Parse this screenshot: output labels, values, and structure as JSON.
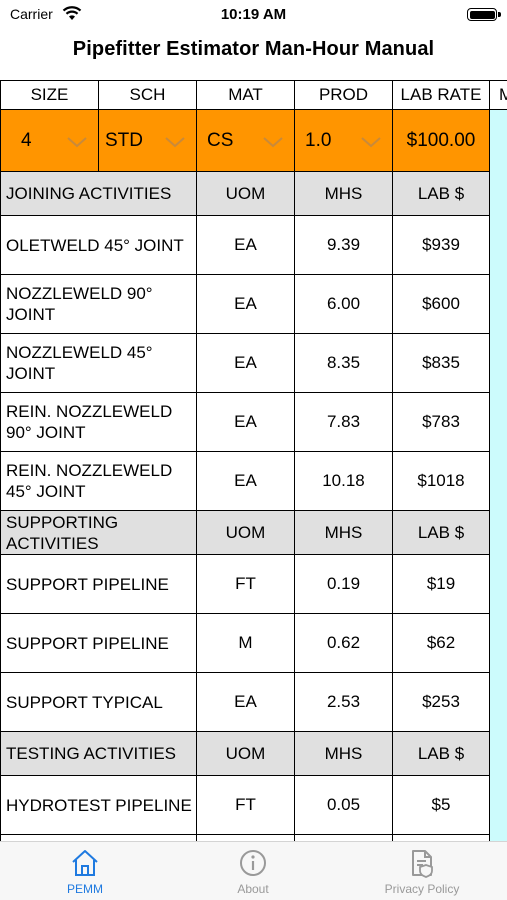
{
  "status_bar": {
    "carrier": "Carrier",
    "time": "10:19 AM"
  },
  "nav": {
    "title": "Pipefitter Estimator Man-Hour Manual"
  },
  "columns": [
    "SIZE",
    "SCH",
    "MAT",
    "PROD",
    "LAB RATE",
    "M"
  ],
  "selectors": {
    "size": "4",
    "sch": "STD",
    "mat": "CS",
    "prod": "1.0",
    "lab_rate": "$100.00"
  },
  "sections": [
    {
      "title": "JOINING ACTIVITIES",
      "headers": {
        "uom": "UOM",
        "mhs": "MHS",
        "lab": "LAB $"
      },
      "rows": [
        {
          "activity": "OLETWELD 45° JOINT",
          "uom": "EA",
          "mhs": "9.39",
          "lab": "$939"
        },
        {
          "activity": "NOZZLEWELD 90° JOINT",
          "uom": "EA",
          "mhs": "6.00",
          "lab": "$600"
        },
        {
          "activity": "NOZZLEWELD 45° JOINT",
          "uom": "EA",
          "mhs": "8.35",
          "lab": "$835"
        },
        {
          "activity": "REIN. NOZZLEWELD 90° JOINT",
          "uom": "EA",
          "mhs": "7.83",
          "lab": "$783"
        },
        {
          "activity": "REIN. NOZZLEWELD 45° JOINT",
          "uom": "EA",
          "mhs": "10.18",
          "lab": "$1018"
        }
      ]
    },
    {
      "title": "SUPPORTING ACTIVITIES",
      "headers": {
        "uom": "UOM",
        "mhs": "MHS",
        "lab": "LAB $"
      },
      "rows": [
        {
          "activity": "SUPPORT PIPELINE",
          "uom": "FT",
          "mhs": "0.19",
          "lab": "$19"
        },
        {
          "activity": "SUPPORT PIPELINE",
          "uom": "M",
          "mhs": "0.62",
          "lab": "$62"
        },
        {
          "activity": "SUPPORT TYPICAL",
          "uom": "EA",
          "mhs": "2.53",
          "lab": "$253"
        }
      ]
    },
    {
      "title": "TESTING ACTIVITIES",
      "headers": {
        "uom": "UOM",
        "mhs": "MHS",
        "lab": "LAB $"
      },
      "rows": [
        {
          "activity": "HYDROTEST PIPELINE",
          "uom": "FT",
          "mhs": "0.05",
          "lab": "$5"
        }
      ]
    }
  ],
  "tabs": [
    {
      "label": "PEMM",
      "icon": "home-icon",
      "active": true
    },
    {
      "label": "About",
      "icon": "info-icon",
      "active": false
    },
    {
      "label": "Privacy Policy",
      "icon": "document-shield-icon",
      "active": false
    }
  ],
  "colors": {
    "selector_bg": "#ff9500",
    "section_bg": "#e0e0e0",
    "side_column": "#ccfbfc",
    "active_tab": "#1f7ae0",
    "inactive_tab": "#999999"
  }
}
